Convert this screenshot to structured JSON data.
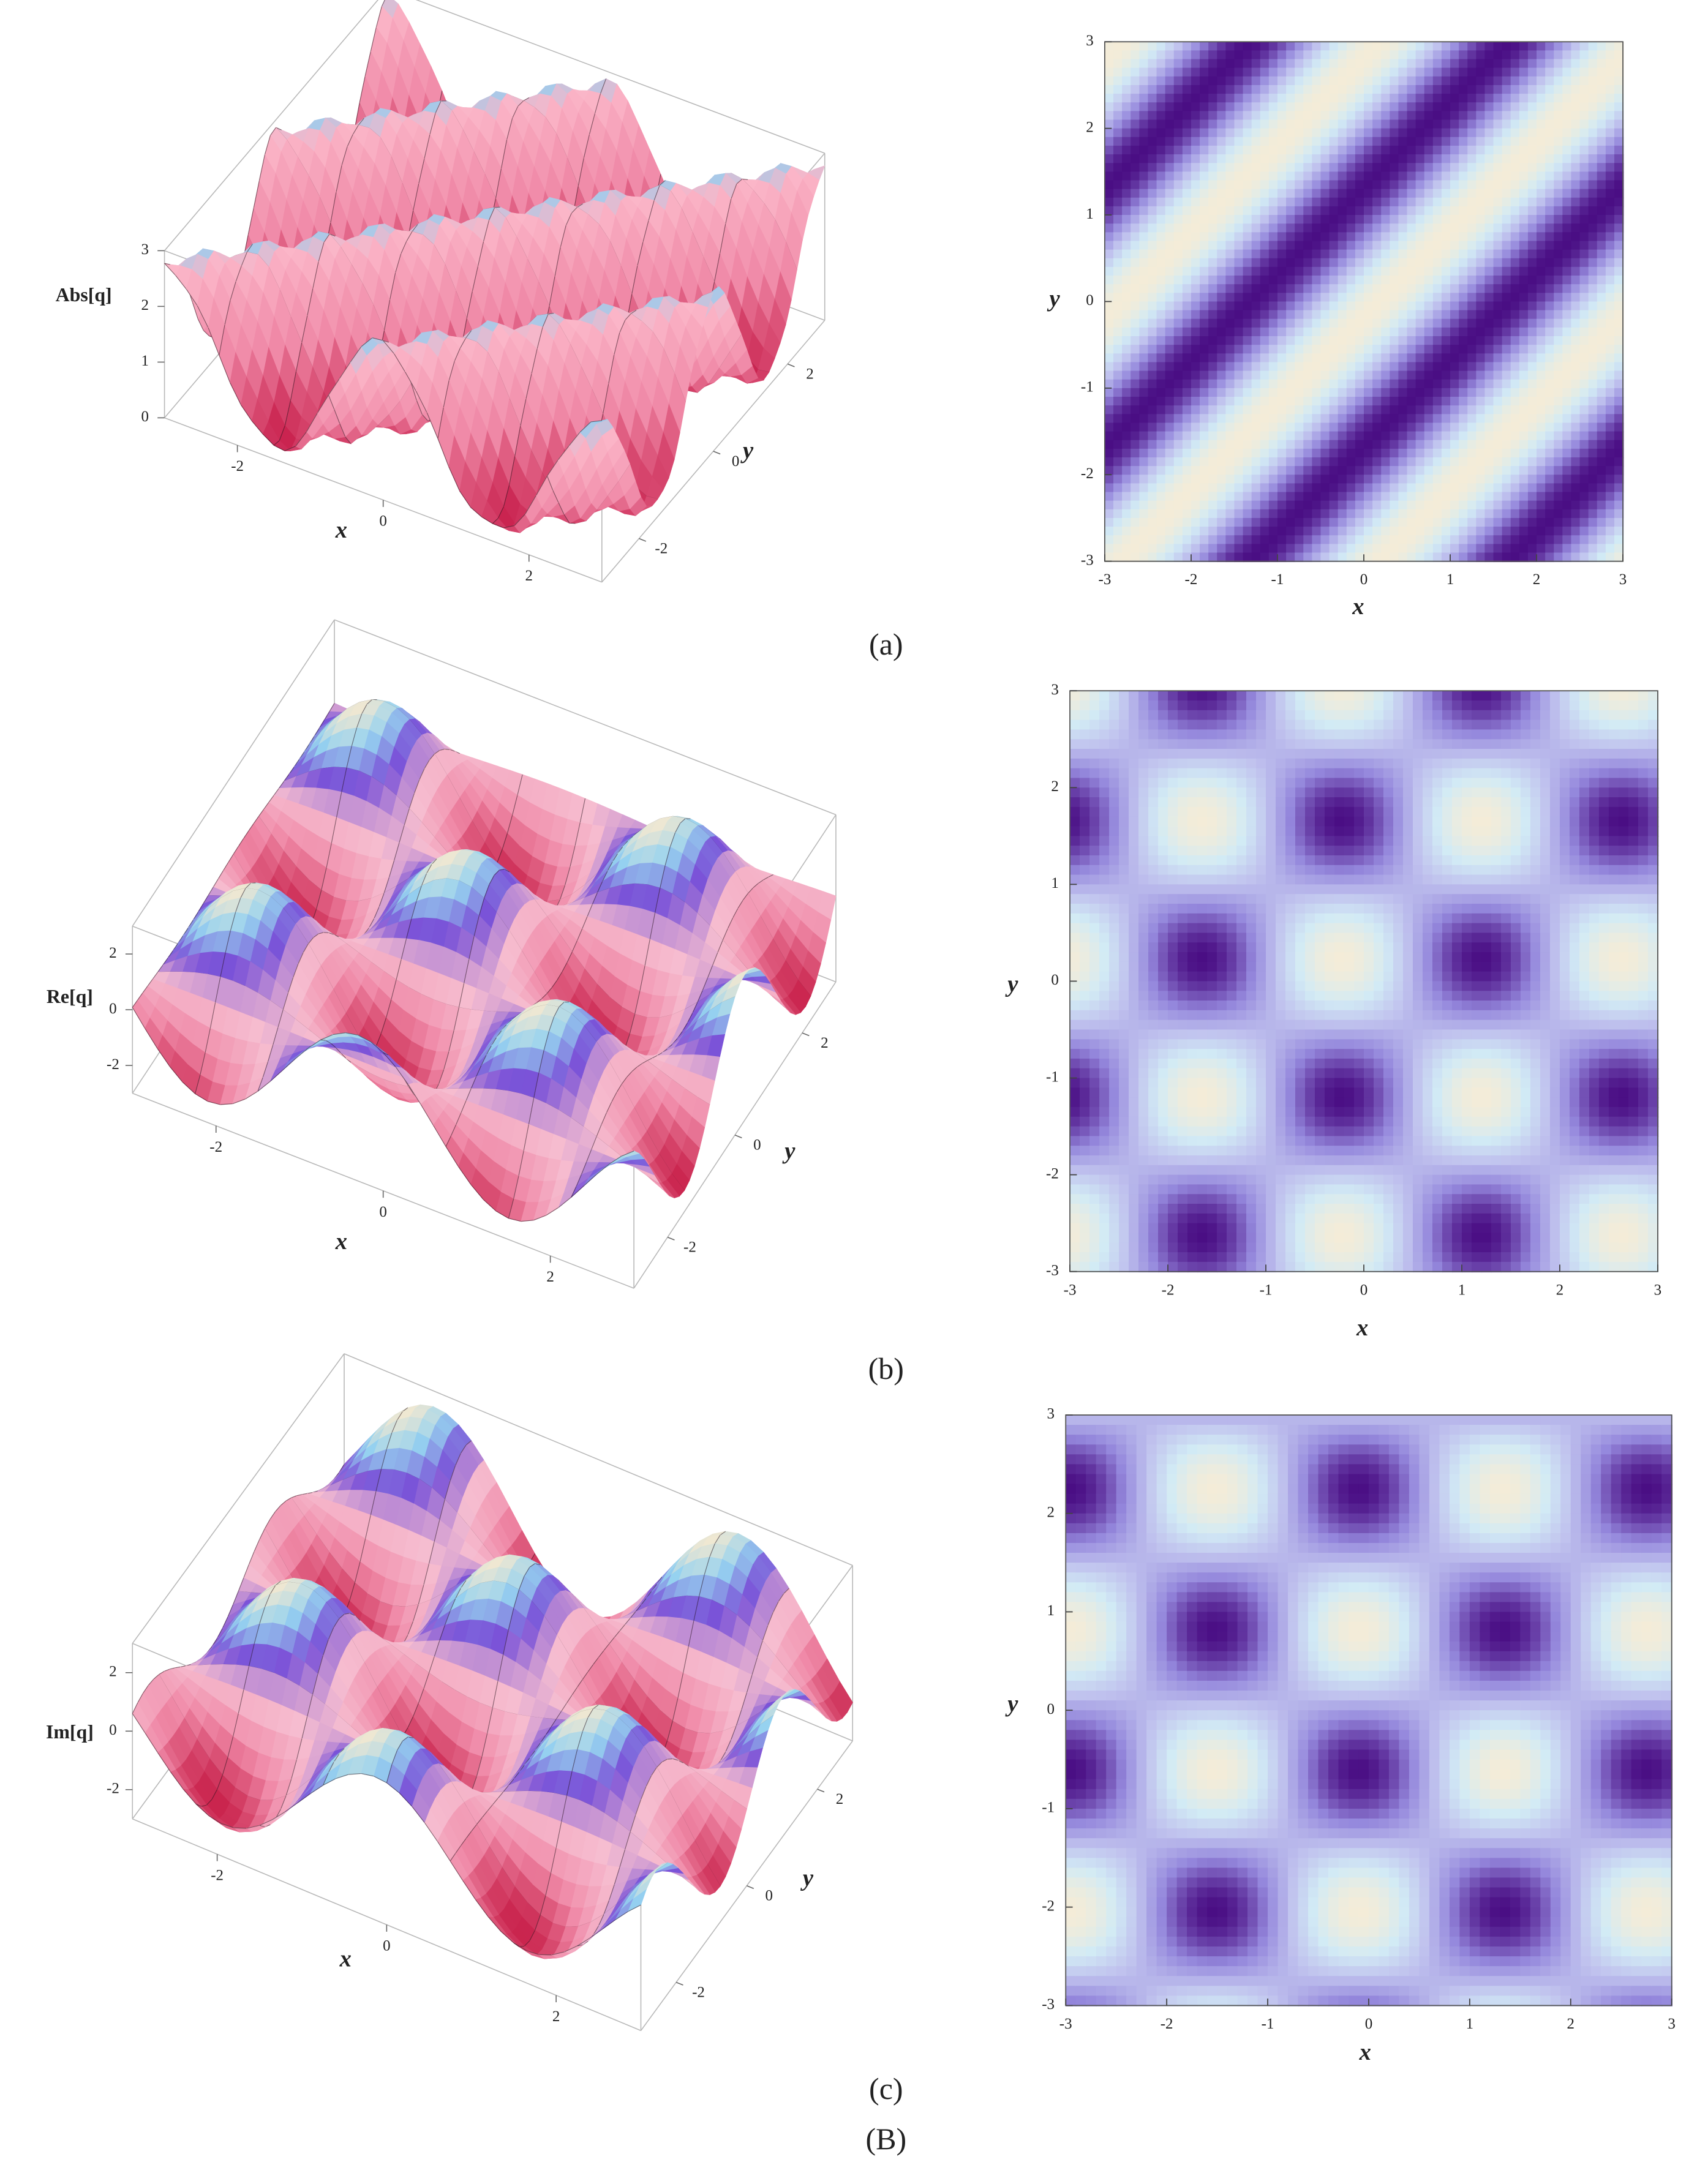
{
  "panels": [
    {
      "label": "(a)",
      "surface": {
        "zlabel": "Abs[q]",
        "xlabel": "x",
        "ylabel": "y",
        "xlim": [
          -3,
          3
        ],
        "ylim": [
          -3,
          3
        ],
        "zlim": [
          0,
          3
        ],
        "xticks": [
          -2,
          0,
          2
        ],
        "yticks": [
          -2,
          0,
          2
        ],
        "zticks": [
          0,
          1,
          2,
          3
        ]
      },
      "density": {
        "xlabel": "x",
        "ylabel": "y",
        "xlim": [
          -3,
          3
        ],
        "ylim": [
          -3,
          3
        ],
        "xticks": [
          -3,
          -2,
          -1,
          0,
          1,
          2,
          3
        ],
        "yticks": [
          -3,
          -2,
          -1,
          0,
          1,
          2,
          3
        ]
      }
    },
    {
      "label": "(b)",
      "surface": {
        "zlabel": "Re[q]",
        "xlabel": "x",
        "ylabel": "y",
        "xlim": [
          -3,
          3
        ],
        "ylim": [
          -3,
          3
        ],
        "zlim": [
          -3,
          3
        ],
        "xticks": [
          -2,
          0,
          2
        ],
        "yticks": [
          -2,
          0,
          2
        ],
        "zticks": [
          -2,
          0,
          2
        ]
      },
      "density": {
        "xlabel": "x",
        "ylabel": "y",
        "xlim": [
          -3,
          3
        ],
        "ylim": [
          -3,
          3
        ],
        "xticks": [
          -3,
          -2,
          -1,
          0,
          1,
          2,
          3
        ],
        "yticks": [
          -3,
          -2,
          -1,
          0,
          1,
          2,
          3
        ]
      }
    },
    {
      "label": "(c)",
      "surface": {
        "zlabel": "Im[q]",
        "xlabel": "x",
        "ylabel": "y",
        "xlim": [
          -3,
          3
        ],
        "ylim": [
          -3,
          3
        ],
        "zlim": [
          -3,
          3
        ],
        "xticks": [
          -2,
          0,
          2
        ],
        "yticks": [
          -2,
          0,
          2
        ],
        "zticks": [
          -2,
          0,
          2
        ]
      },
      "density": {
        "xlabel": "x",
        "ylabel": "y",
        "xlim": [
          -3,
          3
        ],
        "ylim": [
          -3,
          3
        ],
        "xticks": [
          -3,
          -2,
          -1,
          0,
          1,
          2,
          3
        ],
        "yticks": [
          -3,
          -2,
          -1,
          0,
          1,
          2,
          3
        ]
      }
    }
  ],
  "figure_label": "(B)"
}
